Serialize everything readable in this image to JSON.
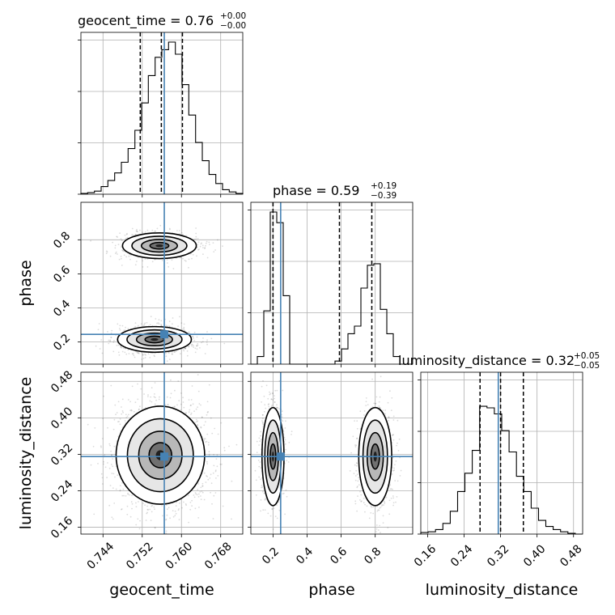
{
  "chart_data": {
    "type": "corner",
    "parameters": [
      {
        "name": "geocent_time",
        "axis_label": "geocent_time",
        "title": {
          "main": "geocent_time = 0.76",
          "upper": "+0.00",
          "lower": "−0.00"
        },
        "range": [
          0.7395,
          0.7725
        ],
        "ticks": [
          "0.744",
          "0.752",
          "0.760",
          "0.768"
        ],
        "quantiles": [
          0.7516,
          0.7559,
          0.7602
        ],
        "truth": 0.7565,
        "hist": [
          0.005,
          0.01,
          0.02,
          0.05,
          0.09,
          0.14,
          0.21,
          0.3,
          0.42,
          0.6,
          0.78,
          0.9,
          0.95,
          1.0,
          0.92,
          0.72,
          0.52,
          0.34,
          0.22,
          0.13,
          0.07,
          0.03,
          0.015,
          0.005
        ]
      },
      {
        "name": "phase",
        "axis_label": "phase",
        "title": {
          "main": "phase = 0.59",
          "upper": "+0.19",
          "lower": "−0.39"
        },
        "range": [
          0.07,
          1.02
        ],
        "ticks": [
          "0.2",
          "0.4",
          "0.6",
          "0.8"
        ],
        "quantiles": [
          0.2,
          0.59,
          0.78
        ],
        "truth": 0.245,
        "hist": [
          0,
          0.05,
          0.35,
          1.0,
          0.93,
          0.45,
          0,
          0,
          0,
          0,
          0,
          0,
          0,
          0.02,
          0.1,
          0.2,
          0.25,
          0.5,
          0.65,
          0.66,
          0.36,
          0.2,
          0.05,
          0,
          0
        ]
      },
      {
        "name": "luminosity_distance",
        "axis_label": "luminosity_distance",
        "title": {
          "main": "luminosity_distance = 0.32",
          "upper": "+0.05",
          "lower": "−0.05"
        },
        "range": [
          0.145,
          0.5
        ],
        "ticks": [
          "0.16",
          "0.24",
          "0.32",
          "0.40",
          "0.48"
        ],
        "quantiles": [
          0.275,
          0.32,
          0.37
        ],
        "truth": 0.315,
        "hist": [
          0.01,
          0.015,
          0.03,
          0.07,
          0.15,
          0.28,
          0.4,
          0.55,
          0.84,
          0.83,
          0.79,
          0.68,
          0.54,
          0.38,
          0.28,
          0.17,
          0.09,
          0.05,
          0.03,
          0.015,
          0.005,
          0
        ]
      }
    ],
    "pair_plots": [
      {
        "x": "geocent_time",
        "y": "phase",
        "modes": [
          {
            "x": 0.7555,
            "y": 0.765,
            "sx": 0.0035,
            "sy": 0.035,
            "weight": 0.46
          },
          {
            "x": 0.7545,
            "y": 0.215,
            "sx": 0.0035,
            "sy": 0.035,
            "weight": 0.54
          }
        ]
      },
      {
        "x": "geocent_time",
        "y": "luminosity_distance",
        "modes": [
          {
            "x": 0.7557,
            "y": 0.318,
            "sx": 0.0042,
            "sy": 0.05,
            "weight": 1.0
          }
        ]
      },
      {
        "x": "phase",
        "y": "luminosity_distance",
        "modes": [
          {
            "x": 0.2,
            "y": 0.315,
            "sx": 0.03,
            "sy": 0.05,
            "weight": 0.53
          },
          {
            "x": 0.8,
            "y": 0.315,
            "sx": 0.045,
            "sy": 0.05,
            "weight": 0.47
          }
        ]
      }
    ],
    "truth_color": "#4682b4",
    "grid": true
  }
}
